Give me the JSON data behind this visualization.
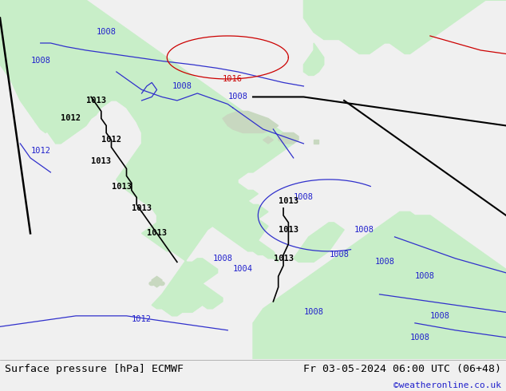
{
  "title_left": "Surface pressure [hPa] ECMWF",
  "title_right": "Fr 03-05-2024 06:00 UTC (06+48)",
  "copyright": "©weatheronline.co.uk",
  "bg_color": "#d8d8d8",
  "land_color": "#c8eec8",
  "island_color": "#c8d8c0",
  "bottom_color": "#f0f0f0",
  "figure_width": 6.34,
  "figure_height": 4.9,
  "dpi": 100
}
